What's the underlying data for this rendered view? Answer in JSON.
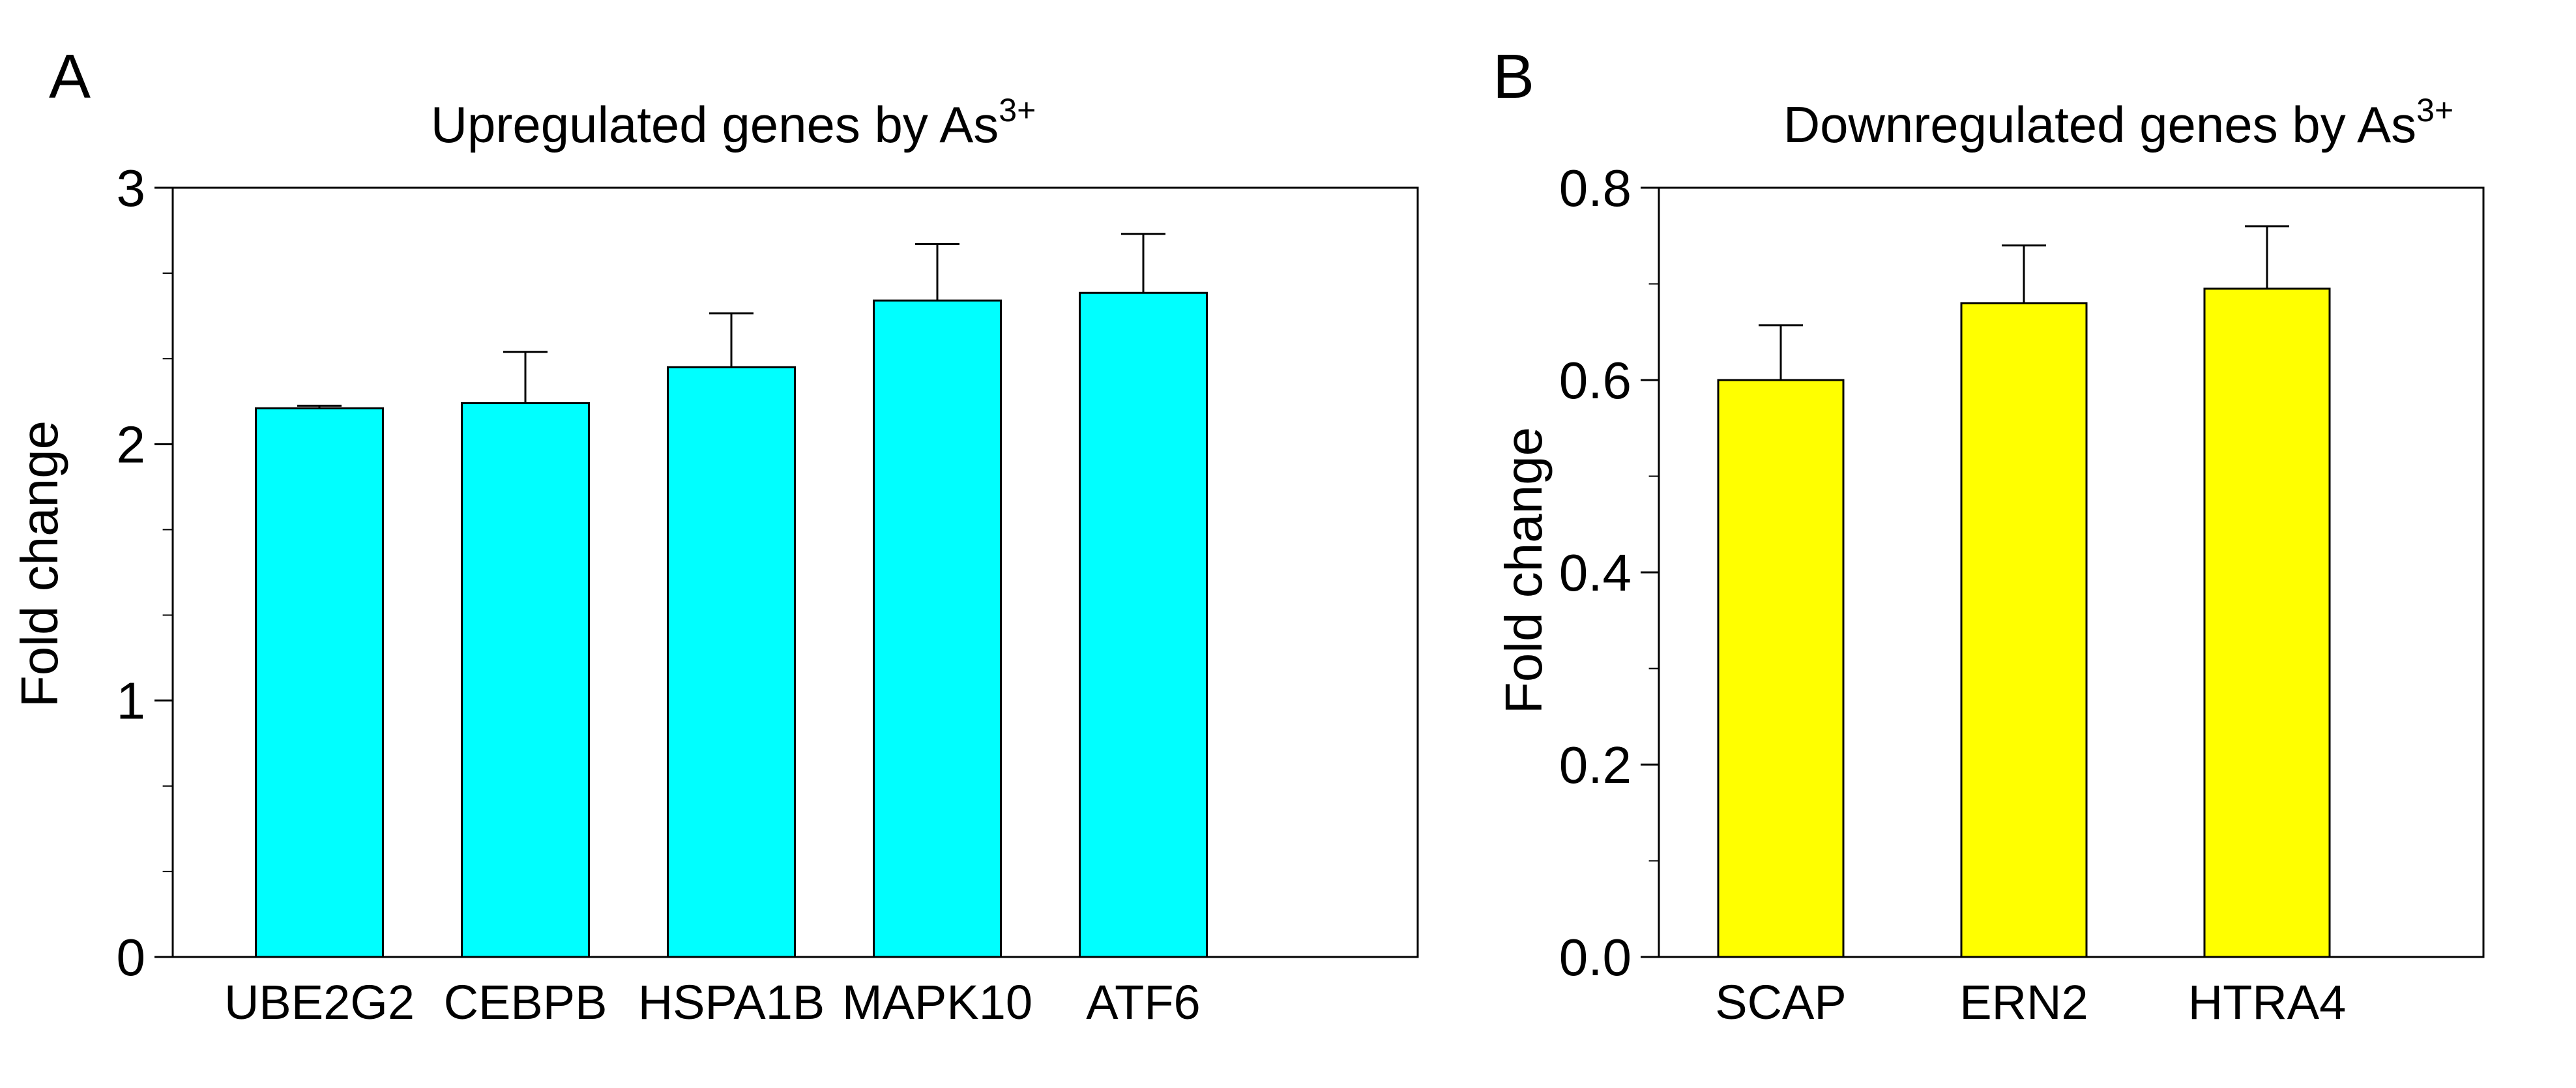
{
  "chart_data": [
    {
      "type": "bar",
      "panel_label": "A",
      "title": "Upregulated genes by As",
      "title_superscript": "3+",
      "xlabel": "",
      "ylabel": "Fold change",
      "ylim": [
        0,
        3
      ],
      "y_ticks": [
        "0",
        "1",
        "2",
        "3"
      ],
      "grid": false,
      "legend": "none",
      "categories": [
        "UBE2G2",
        "CEBPB",
        "HSPA1B",
        "MAPK10",
        "ATF6"
      ],
      "values": [
        2.14,
        2.16,
        2.3,
        2.56,
        2.59
      ],
      "errors": [
        0.01,
        0.2,
        0.21,
        0.22,
        0.23
      ],
      "color": "#00FFFF"
    },
    {
      "type": "bar",
      "panel_label": "B",
      "title": "Downregulated genes by As",
      "title_superscript": "3+",
      "xlabel": "",
      "ylabel": "Fold change",
      "ylim": [
        0,
        0.8
      ],
      "y_ticks": [
        "0.0",
        "0.2",
        "0.4",
        "0.6",
        "0.8"
      ],
      "grid": false,
      "legend": "none",
      "categories": [
        "SCAP",
        "ERN2",
        "HTRA4"
      ],
      "values": [
        0.6,
        0.68,
        0.695
      ],
      "errors": [
        0.057,
        0.06,
        0.065
      ],
      "color": "#FFFF00"
    }
  ]
}
